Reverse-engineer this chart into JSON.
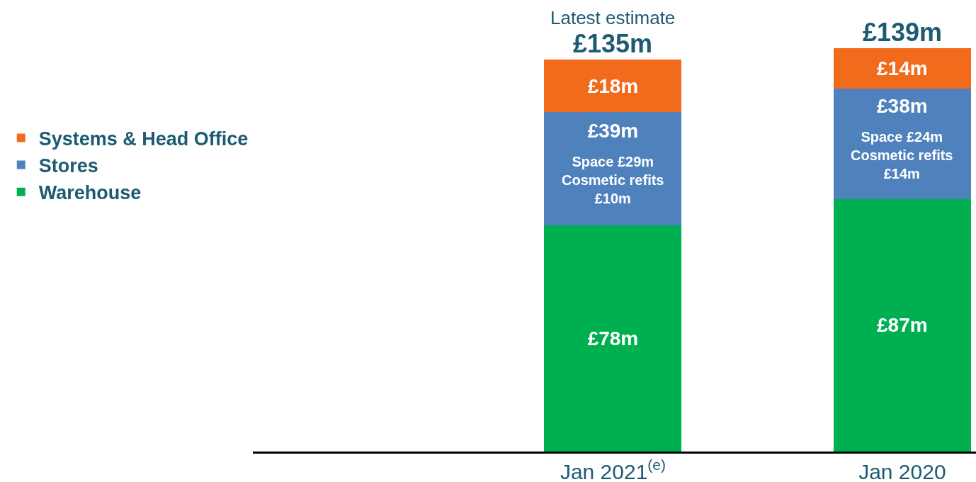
{
  "chart_data": {
    "type": "bar",
    "stacked": true,
    "legend": "left",
    "categories": [
      "Jan 2021$^{(e)}$",
      "Jan 2020"
    ],
    "series": [
      {
        "name": "Warehouse",
        "color": "#00b050",
        "values": [
          78,
          87
        ],
        "value_labels": [
          "£78m",
          "£87m"
        ]
      },
      {
        "name": "Stores",
        "color": "#4f81bd",
        "values": [
          39,
          38
        ],
        "value_labels": [
          "£39m",
          "£38m"
        ]
      },
      {
        "name": "Systems & Head Office",
        "color": "#f26b1d",
        "values": [
          18,
          14
        ],
        "value_labels": [
          "£18m",
          "£14m"
        ]
      }
    ],
    "totals": [
      "£135m",
      "£139m"
    ],
    "annotations": [
      {
        "text": "Latest estimate",
        "x": "Jan 2021$^{(e)}$",
        "y": 135
      },
      "Space £29m\nCosmetic refits\n£10m",
      "Space £24m\nCosmetic refits\n£14m"
    ]
  }
}
